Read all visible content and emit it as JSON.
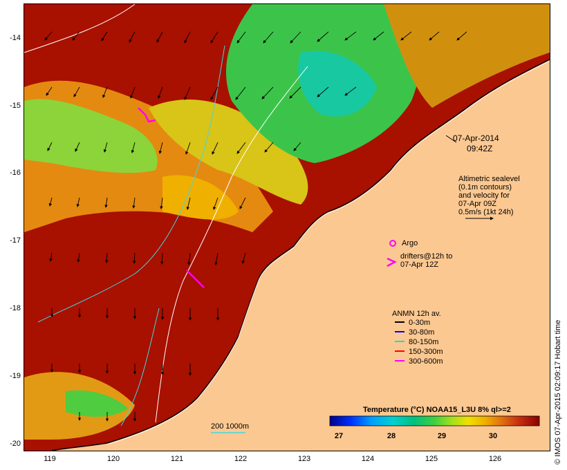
{
  "map": {
    "lat_ticks": [
      "-14",
      "-15",
      "-16",
      "-17",
      "-18",
      "-19",
      "-20"
    ],
    "lon_ticks": [
      "119",
      "120",
      "121",
      "122",
      "123",
      "124",
      "125",
      "126"
    ],
    "date": "07-Apr-2014",
    "time": "09:42Z",
    "altimetry_lines": [
      "Altimetric sealevel",
      "(0.1m contours)",
      "and velocity for",
      "07-Apr 09Z",
      "0.5m/s (1kt 24h)"
    ],
    "argo_label": "Argo",
    "drifters_lines": [
      "drifters@12h to",
      "07-Apr 12Z"
    ],
    "anmn_title": "ANMN 12h av.",
    "anmn_items": [
      {
        "label": "0-30m",
        "color": "#000000"
      },
      {
        "label": "30-80m",
        "color": "#0000ff"
      },
      {
        "label": "80-150m",
        "color": "#00e0e0"
      },
      {
        "label": "150-300m",
        "color": "#ff0000"
      },
      {
        "label": "300-600m",
        "color": "#ff00ff"
      }
    ],
    "depth_contour_label": "200  1000m",
    "colorbar": {
      "title": "Temperature (°C) NOAA15_L3U 8% ql>=2",
      "ticks": [
        "27",
        "28",
        "29",
        "30"
      ],
      "colors": [
        "#00008b",
        "#0030ff",
        "#00a0ff",
        "#00d0d0",
        "#00c080",
        "#40d040",
        "#a0e020",
        "#f0e000",
        "#f0b000",
        "#e07010",
        "#c83010",
        "#a00000",
        "#8b0000"
      ]
    },
    "credit": "© IMOS 07-Apr-2015 02:09:17 Hobart time"
  }
}
